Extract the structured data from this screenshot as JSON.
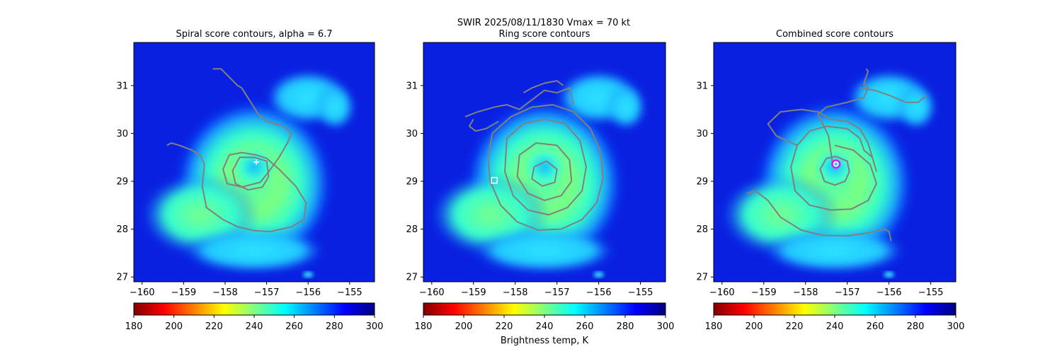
{
  "figure": {
    "suptitle_line1": "SWIR  2025/08/11/1830    Vmax = 70 kt",
    "colorbar_label": "Brightness temp, K"
  },
  "colors": {
    "contour": "#808080",
    "marker_plus": "#ffffff",
    "marker_square": "#ffffff",
    "marker_circle_outer": "#ff00ff",
    "marker_circle_inner": "#ffffff",
    "colormap": "jet_r"
  },
  "chart_data": [
    {
      "type": "heatmap",
      "title": "Spiral score contours, alpha =  6.7",
      "xlim": [
        -160.2,
        -154.4
      ],
      "ylim": [
        26.9,
        31.9
      ],
      "xticks": [
        -160,
        -159,
        -158,
        -157,
        -156,
        -155
      ],
      "xtick_labels": [
        "−160",
        "−159",
        "−158",
        "−157",
        "−156",
        "−155"
      ],
      "yticks": [
        27,
        28,
        29,
        30,
        31
      ],
      "ytick_labels": [
        "27",
        "28",
        "29",
        "30",
        "31"
      ],
      "colorbar": {
        "vmin": 180,
        "vmax": 300,
        "ticks": [
          180,
          200,
          220,
          240,
          260,
          280,
          300
        ],
        "tick_labels": [
          "180",
          "200",
          "220",
          "240",
          "260",
          "280",
          "300"
        ]
      },
      "marker": {
        "shape": "plus",
        "lon": -157.25,
        "lat": 29.4
      },
      "contours": [
        [
          [
            -157.3,
            29.5
          ],
          [
            -157.0,
            29.42
          ],
          [
            -156.95,
            29.1
          ],
          [
            -157.1,
            28.88
          ],
          [
            -157.45,
            28.82
          ],
          [
            -157.75,
            28.95
          ],
          [
            -157.82,
            29.22
          ],
          [
            -157.65,
            29.5
          ],
          [
            -157.3,
            29.5
          ]
        ],
        [
          [
            -157.15,
            28.98
          ],
          [
            -156.95,
            29.2
          ],
          [
            -156.7,
            29.5
          ],
          [
            -156.5,
            29.8
          ],
          [
            -156.4,
            30.0
          ],
          [
            -156.6,
            30.15
          ],
          [
            -157.0,
            30.25
          ],
          [
            -157.2,
            30.4
          ],
          [
            -157.6,
            30.95
          ],
          [
            -157.7,
            31.0
          ],
          [
            -158.1,
            31.35
          ],
          [
            -158.3,
            31.35
          ]
        ],
        [
          [
            -157.15,
            28.98
          ],
          [
            -157.6,
            28.88
          ],
          [
            -157.95,
            28.95
          ],
          [
            -158.05,
            29.25
          ],
          [
            -157.9,
            29.55
          ],
          [
            -157.6,
            29.6
          ],
          [
            -157.25,
            29.55
          ],
          [
            -157.0,
            29.48
          ],
          [
            -156.7,
            29.25
          ],
          [
            -156.3,
            28.9
          ],
          [
            -156.05,
            28.55
          ],
          [
            -156.1,
            28.2
          ],
          [
            -156.4,
            28.05
          ],
          [
            -156.9,
            27.95
          ],
          [
            -157.3,
            27.97
          ],
          [
            -157.7,
            28.05
          ],
          [
            -158.05,
            28.2
          ],
          [
            -158.45,
            28.45
          ],
          [
            -158.55,
            28.9
          ],
          [
            -158.5,
            29.35
          ],
          [
            -158.6,
            29.55
          ],
          [
            -158.8,
            29.65
          ],
          [
            -159.1,
            29.75
          ],
          [
            -159.3,
            29.8
          ],
          [
            -159.4,
            29.75
          ]
        ]
      ]
    },
    {
      "type": "heatmap",
      "title": "Ring score contours",
      "xlim": [
        -160.2,
        -154.4
      ],
      "ylim": [
        26.9,
        31.9
      ],
      "xticks": [
        -160,
        -159,
        -158,
        -157,
        -156,
        -155
      ],
      "xtick_labels": [
        "−160",
        "−159",
        "−158",
        "−157",
        "−156",
        "−155"
      ],
      "yticks": [
        27,
        28,
        29,
        30,
        31
      ],
      "ytick_labels": [
        "27",
        "28",
        "29",
        "30",
        "31"
      ],
      "colorbar": {
        "vmin": 180,
        "vmax": 300,
        "ticks": [
          180,
          200,
          220,
          240,
          260,
          280,
          300
        ],
        "tick_labels": [
          "180",
          "200",
          "220",
          "240",
          "260",
          "280",
          "300"
        ]
      },
      "marker": {
        "shape": "square",
        "lon": -158.5,
        "lat": 29.02
      },
      "contours": [
        [
          [
            -158.55,
            30.0
          ],
          [
            -158.1,
            30.35
          ],
          [
            -157.6,
            30.55
          ],
          [
            -157.1,
            30.6
          ],
          [
            -156.6,
            30.45
          ],
          [
            -156.2,
            30.1
          ],
          [
            -155.95,
            29.6
          ],
          [
            -155.9,
            29.05
          ],
          [
            -156.05,
            28.55
          ],
          [
            -156.4,
            28.2
          ],
          [
            -156.9,
            28.0
          ],
          [
            -157.45,
            27.98
          ],
          [
            -157.95,
            28.15
          ],
          [
            -158.35,
            28.5
          ],
          [
            -158.6,
            29.0
          ],
          [
            -158.65,
            29.5
          ],
          [
            -158.55,
            30.0
          ]
        ],
        [
          [
            -158.2,
            29.9
          ],
          [
            -157.8,
            30.2
          ],
          [
            -157.3,
            30.3
          ],
          [
            -156.8,
            30.2
          ],
          [
            -156.45,
            29.85
          ],
          [
            -156.3,
            29.3
          ],
          [
            -156.4,
            28.8
          ],
          [
            -156.75,
            28.45
          ],
          [
            -157.2,
            28.3
          ],
          [
            -157.7,
            28.4
          ],
          [
            -158.05,
            28.7
          ],
          [
            -158.25,
            29.2
          ],
          [
            -158.2,
            29.9
          ]
        ],
        [
          [
            -157.9,
            29.55
          ],
          [
            -157.5,
            29.8
          ],
          [
            -157.0,
            29.75
          ],
          [
            -156.7,
            29.45
          ],
          [
            -156.65,
            29.0
          ],
          [
            -156.9,
            28.7
          ],
          [
            -157.3,
            28.6
          ],
          [
            -157.7,
            28.75
          ],
          [
            -157.95,
            29.1
          ],
          [
            -157.9,
            29.55
          ]
        ],
        [
          [
            -157.55,
            29.3
          ],
          [
            -157.25,
            29.42
          ],
          [
            -157.0,
            29.25
          ],
          [
            -157.05,
            28.98
          ],
          [
            -157.35,
            28.9
          ],
          [
            -157.6,
            29.05
          ],
          [
            -157.55,
            29.3
          ]
        ],
        [
          [
            -159.2,
            30.35
          ],
          [
            -158.9,
            30.45
          ],
          [
            -158.5,
            30.55
          ],
          [
            -158.2,
            30.6
          ],
          [
            -157.9,
            30.5
          ],
          [
            -157.6,
            30.7
          ],
          [
            -157.3,
            30.9
          ],
          [
            -157.0,
            30.85
          ],
          [
            -156.7,
            30.95
          ],
          [
            -156.6,
            30.6
          ]
        ],
        [
          [
            -157.8,
            30.85
          ],
          [
            -157.6,
            30.95
          ],
          [
            -157.3,
            31.05
          ],
          [
            -157.0,
            31.1
          ],
          [
            -156.85,
            31.0
          ]
        ],
        [
          [
            -158.4,
            30.25
          ],
          [
            -158.7,
            30.1
          ],
          [
            -158.95,
            30.05
          ],
          [
            -159.1,
            30.15
          ],
          [
            -159.0,
            30.3
          ]
        ]
      ]
    },
    {
      "type": "heatmap",
      "title": "Combined score contours",
      "xlim": [
        -160.2,
        -154.4
      ],
      "ylim": [
        26.9,
        31.9
      ],
      "xticks": [
        -160,
        -159,
        -158,
        -157,
        -156,
        -155
      ],
      "xtick_labels": [
        "−160",
        "−159",
        "−158",
        "−157",
        "−156",
        "−155"
      ],
      "yticks": [
        27,
        28,
        29,
        30,
        31
      ],
      "ytick_labels": [
        "27",
        "28",
        "29",
        "30",
        "31"
      ],
      "colorbar": {
        "vmin": 180,
        "vmax": 300,
        "ticks": [
          180,
          200,
          220,
          240,
          260,
          280,
          300
        ],
        "tick_labels": [
          "180",
          "200",
          "220",
          "240",
          "260",
          "280",
          "300"
        ]
      },
      "marker": {
        "shape": "circle",
        "lon": -157.27,
        "lat": 29.36
      },
      "contours": [
        [
          [
            -157.27,
            29.52
          ],
          [
            -157.0,
            29.42
          ],
          [
            -156.95,
            29.2
          ],
          [
            -157.05,
            29.0
          ],
          [
            -157.3,
            28.92
          ],
          [
            -157.55,
            29.0
          ],
          [
            -157.65,
            29.25
          ],
          [
            -157.5,
            29.48
          ],
          [
            -157.27,
            29.52
          ]
        ],
        [
          [
            -157.3,
            29.75
          ],
          [
            -156.85,
            29.65
          ],
          [
            -156.45,
            29.35
          ],
          [
            -156.3,
            28.95
          ],
          [
            -156.5,
            28.6
          ],
          [
            -156.9,
            28.42
          ],
          [
            -157.4,
            28.4
          ],
          [
            -157.9,
            28.5
          ],
          [
            -158.25,
            28.8
          ],
          [
            -158.35,
            29.3
          ],
          [
            -158.2,
            29.75
          ],
          [
            -157.9,
            30.05
          ],
          [
            -157.5,
            30.15
          ],
          [
            -157.0,
            30.1
          ],
          [
            -156.7,
            29.9
          ],
          [
            -156.6,
            29.65
          ],
          [
            -156.4,
            29.5
          ]
        ],
        [
          [
            -158.2,
            29.75
          ],
          [
            -158.7,
            29.95
          ],
          [
            -158.9,
            30.2
          ],
          [
            -158.6,
            30.45
          ],
          [
            -158.1,
            30.5
          ],
          [
            -157.7,
            30.45
          ],
          [
            -157.4,
            30.3
          ],
          [
            -157.0,
            30.25
          ],
          [
            -156.7,
            30.1
          ],
          [
            -156.5,
            29.8
          ],
          [
            -156.3,
            29.2
          ]
        ],
        [
          [
            -157.35,
            29.35
          ],
          [
            -157.45,
            29.95
          ],
          [
            -157.7,
            30.4
          ],
          [
            -157.5,
            30.55
          ],
          [
            -157.0,
            30.65
          ],
          [
            -156.6,
            30.75
          ],
          [
            -156.5,
            30.95
          ],
          [
            -156.6,
            31.05
          ],
          [
            -156.5,
            31.3
          ],
          [
            -156.55,
            31.35
          ]
        ],
        [
          [
            -156.7,
            30.95
          ],
          [
            -156.35,
            30.9
          ],
          [
            -156.0,
            30.8
          ],
          [
            -155.6,
            30.65
          ],
          [
            -155.3,
            30.65
          ],
          [
            -155.1,
            30.8
          ]
        ],
        [
          [
            -159.4,
            28.75
          ],
          [
            -159.2,
            28.8
          ],
          [
            -158.9,
            28.6
          ],
          [
            -158.6,
            28.25
          ],
          [
            -158.1,
            27.98
          ],
          [
            -157.6,
            27.87
          ],
          [
            -157.0,
            27.86
          ],
          [
            -156.5,
            27.92
          ],
          [
            -156.1,
            28.0
          ],
          [
            -156.0,
            27.95
          ],
          [
            -155.95,
            27.75
          ]
        ]
      ]
    }
  ]
}
